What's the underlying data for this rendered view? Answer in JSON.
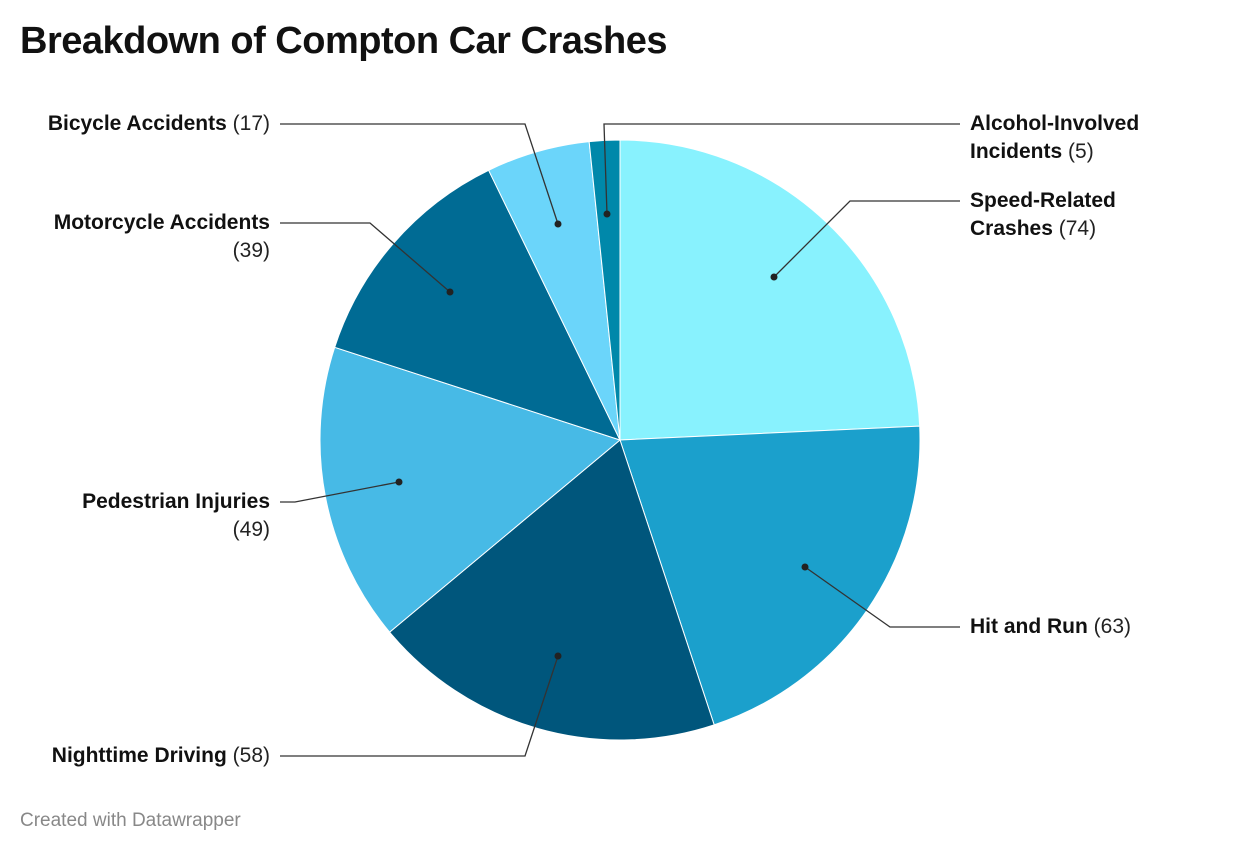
{
  "chart_data": {
    "type": "pie",
    "title": "Breakdown of Compton Car Crashes",
    "footer": "Created with Datawrapper",
    "slices": [
      {
        "label": "Speed-Related Crashes",
        "value": 74,
        "color": "#88f2fe"
      },
      {
        "label": "Hit and Run",
        "value": 63,
        "color": "#1ba0cc"
      },
      {
        "label": "Nighttime Driving",
        "value": 58,
        "color": "#00567c"
      },
      {
        "label": "Pedestrian Injuries",
        "value": 49,
        "color": "#47bae6"
      },
      {
        "label": "Motorcycle Accidents",
        "value": 39,
        "color": "#006b94"
      },
      {
        "label": "Bicycle Accidents",
        "value": 17,
        "color": "#6bd5fa"
      },
      {
        "label": "Alcohol-Involved Incidents",
        "value": 5,
        "color": "#0088aa"
      }
    ],
    "start_angle": "12 o'clock",
    "direction": "clockwise"
  }
}
